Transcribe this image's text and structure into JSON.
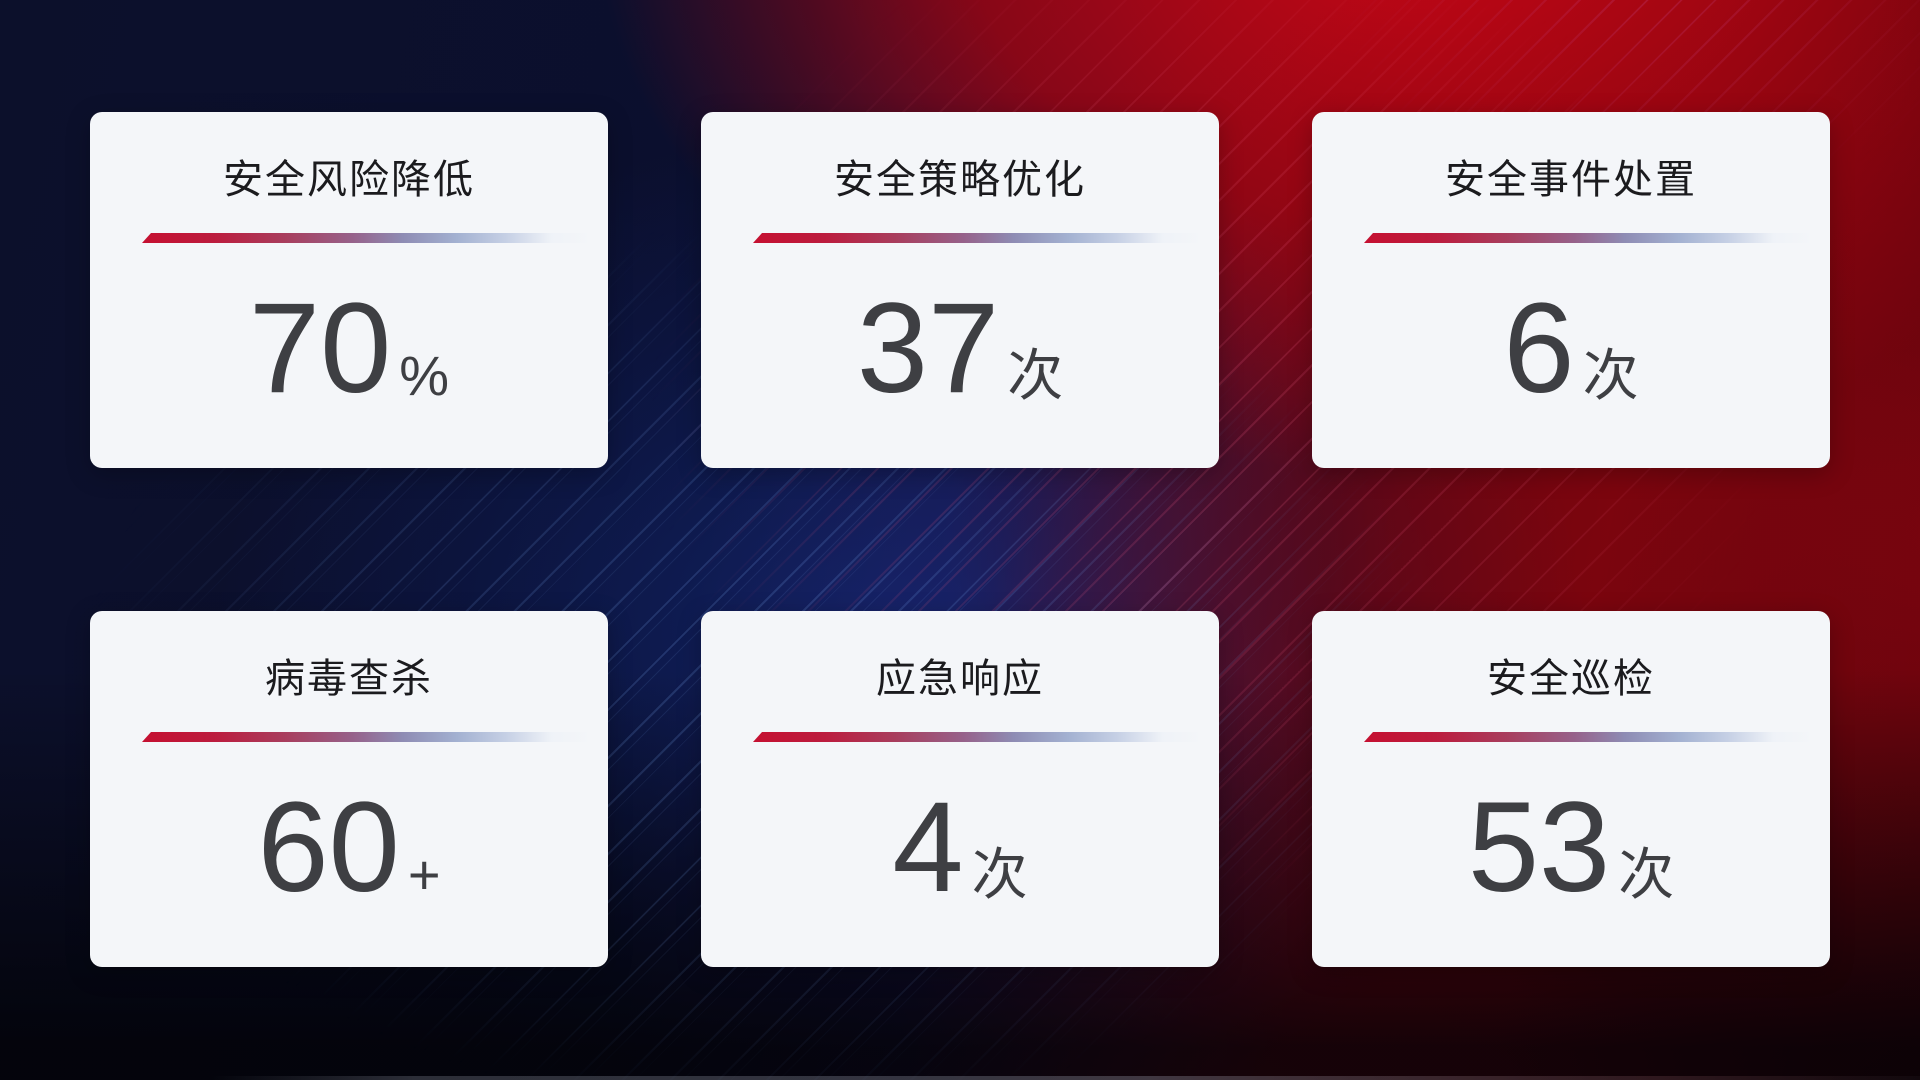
{
  "theme": {
    "card_background": "#f4f6f9",
    "title_color": "#1b1b1e",
    "value_color": "#3e3f43",
    "divider_start_color": "#c51031",
    "divider_mid_color": "#8e8cb4",
    "divider_end_color": "#c6d0e5",
    "background_navy": "#0c102b",
    "background_blue_glow": "#16348c",
    "background_red": "#a10712",
    "background_dark_maroon": "#400409"
  },
  "cards": [
    {
      "title": "安全风险降低",
      "value": "70",
      "unit": "%"
    },
    {
      "title": "安全策略优化",
      "value": "37",
      "unit": "次"
    },
    {
      "title": "安全事件处置",
      "value": "6",
      "unit": "次"
    },
    {
      "title": "病毒查杀",
      "value": "60",
      "unit": "+"
    },
    {
      "title": "应急响应",
      "value": "4",
      "unit": "次"
    },
    {
      "title": "安全巡检",
      "value": "53",
      "unit": "次"
    }
  ]
}
